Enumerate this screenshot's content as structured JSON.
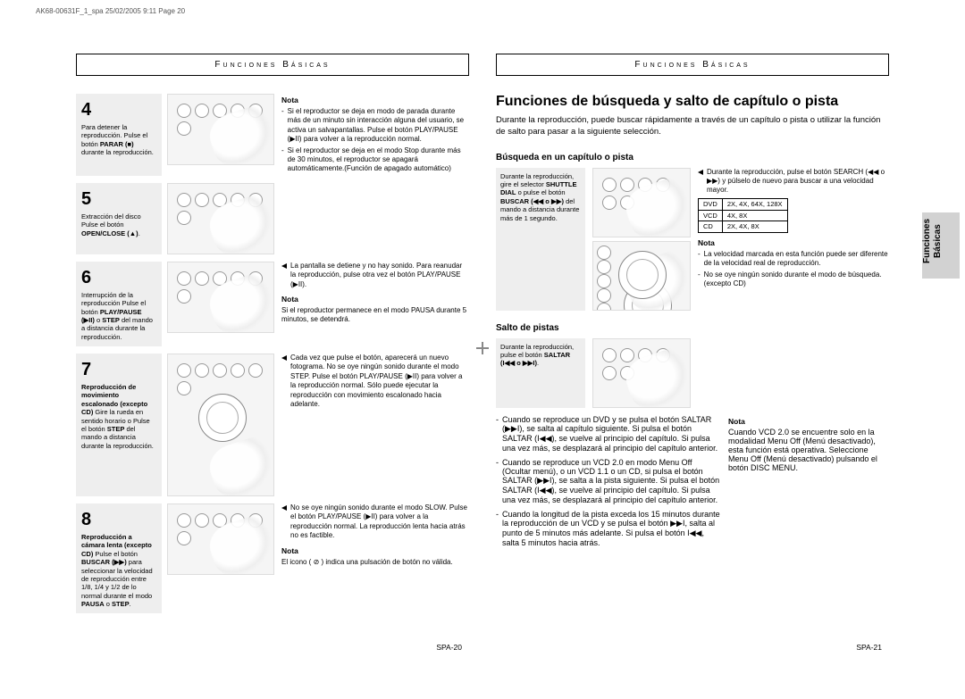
{
  "headerStrip": "AK68-00631F_1_spa   25/02/2005   9:11   Page 20",
  "sectionHeader": "Funciones Básicas",
  "sideTab": "Funciones Básicas",
  "left": {
    "steps": [
      {
        "num": "4",
        "box": "Para detener la reproducción. Pulse el botón <b>PARAR (■)</b> durante la reproducción.",
        "notaTitle": "Nota",
        "bullets": [
          "Si el reproductor se deja en modo de parada durante más de un minuto sin interacción alguna del usuario, se activa un salvapantallas. Pulse el botón PLAY/PAUSE (▶II) para volver a la reproducción normal.",
          "Si el reproductor se deja en el modo Stop durante más de 30 minutos, el reproductor se apagará automáticamente.(Función de apagado automático)"
        ],
        "tri": []
      },
      {
        "num": "5",
        "box": "Extracción del disco Pulse el botón <b>OPEN/CLOSE (▲)</b>.",
        "notaTitle": "",
        "bullets": [],
        "tri": []
      },
      {
        "num": "6",
        "box": "Interrupción de la reproducción Pulse el botón <b>PLAY/PAUSE (▶II)</b> o <b>STEP</b> del mando a distancia durante la reproducción.",
        "notaTitle": "Nota",
        "bullets": [
          "Si el reproductor permanece en el modo PAUSA durante 5 minutos, se detendrá."
        ],
        "tri": [
          "La pantalla se detiene y no hay sonido. Para reanudar la reproducción, pulse otra vez el botón PLAY/PAUSE (▶II)."
        ]
      },
      {
        "num": "7",
        "box": "<b>Reproducción de movimiento escalonado (excepto CD)</b> Gire la rueda en sentido horario o Pulse el botón <b>STEP</b> del mando a distancia durante la reproducción.",
        "notaTitle": "",
        "bullets": [],
        "tri": [
          "Cada vez que pulse el botón, aparecerá un nuevo fotograma. No se oye ningún sonido durante el modo STEP. Pulse el botón PLAY/PAUSE (▶II) para volver a la reproducción normal. Sólo puede ejecutar la reproducción con movimiento escalonado hacia adelante."
        ]
      },
      {
        "num": "8",
        "box": "<b>Reproducción a cámara lenta (excepto CD)</b> Pulse el botón <b>BUSCAR (▶▶)</b> para seleccionar la velocidad de reproducción entre 1/8, 1/4 y 1/2 de lo normal durante el modo <b>PAUSA</b> o <b>STEP</b>.",
        "notaTitle": "Nota",
        "bullets": [
          "El icono ( ⊘ ) indica una pulsación de botón no válida."
        ],
        "tri": [
          "No se oye ningún sonido durante el modo SLOW. Pulse el botón PLAY/PAUSE (▶II) para volver a la reproducción normal. La reproducción lenta hacia atrás no es factible."
        ]
      }
    ],
    "footer": "SPA-20"
  },
  "right": {
    "title": "Funciones de búsqueda y salto de capítulo o pista",
    "intro": "Durante la reproducción, puede buscar rápidamente a través de un capítulo o pista o utilizar la función de salto para pasar a la siguiente selección.",
    "sections": [
      {
        "title": "Búsqueda en un capítulo o pista",
        "box": "Durante la reproducción, gire el selector <b>SHUTTLE DIAL</b> o pulse el botón <b>BUSCAR (◀◀ o ▶▶)</b> del mando a distancia durante más de 1 segundo.",
        "tri": [
          "Durante la reproducción, pulse el botón SEARCH (◀◀ o ▶▶) y púlselo de nuevo para buscar a una velocidad mayor."
        ],
        "speedsRows": [
          [
            "DVD",
            "2X, 4X, 64X, 128X"
          ],
          [
            "VCD",
            "4X, 8X"
          ],
          [
            "CD",
            "2X, 4X, 8X"
          ]
        ],
        "notaTitle": "Nota",
        "nota": [
          "La velocidad marcada en esta función puede ser diferente de la velocidad real de reproducción.",
          "No se oye ningún sonido durante el modo de búsqueda.(excepto CD)"
        ]
      },
      {
        "title": "Salto de pistas",
        "box": "Durante la reproducción, pulse el botón <b>SALTAR (I◀◀ o ▶▶I)</b>.",
        "body": [
          "Cuando se reproduce un DVD y se pulsa el botón SALTAR (▶▶I), se salta al capítulo siguiente. Si pulsa el botón SALTAR (I◀◀), se vuelve al principio del capítulo. Si pulsa una vez más, se desplazará al principio del capítulo anterior.",
          "Cuando se reproduce un VCD 2.0 en modo Menu Off (Ocultar menú), o un VCD 1.1 o un CD, si pulsa el botón SALTAR (▶▶I), se salta a la pista siguiente. Si pulsa el botón SALTAR (I◀◀), se vuelve al principio del capítulo. Si pulsa una vez más, se desplazará al principio del capítulo anterior.",
          "Cuando la longitud de la pista exceda los 15 minutos durante la reproducción de un VCD y se pulsa el botón ▶▶I, salta al punto de 5 minutos más adelante. Si pulsa el botón I◀◀, salta 5 minutos hacia atrás."
        ],
        "notaTitle": "Nota",
        "nota2": "Cuando VCD 2.0 se encuentre solo en la modalidad Menu Off (Menú desactivado), esta función está operativa. Seleccione Menu Off (Menú desactivado) pulsando el botón DISC MENU.",
        "tri": []
      }
    ],
    "footer": "SPA-21"
  }
}
